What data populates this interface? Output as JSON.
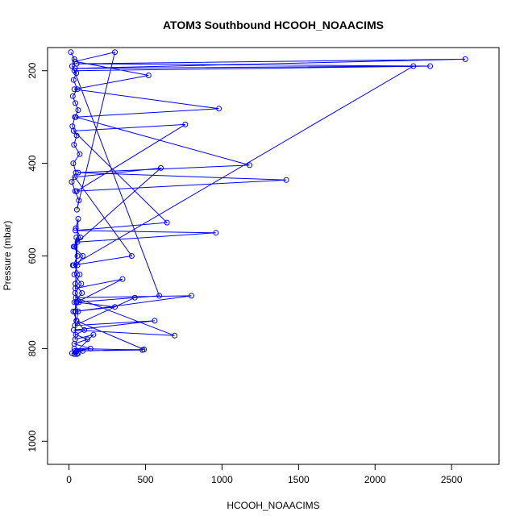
{
  "chart_data": {
    "type": "line",
    "title": "ATOM3 Southbound HCOOH_NOAACIMS",
    "xlabel": "HCOOH_NOAACIMS",
    "ylabel": "Pressure (mbar)",
    "xlim": [
      -140,
      2810
    ],
    "ylim": [
      1050,
      150
    ],
    "y_reversed": true,
    "grid": false,
    "legend": "none",
    "x_ticks": [
      0,
      500,
      1000,
      1500,
      2000,
      2500
    ],
    "x_tick_labels": [
      "0",
      "500",
      "1000",
      "1500",
      "2000",
      "2500"
    ],
    "y_ticks": [
      200,
      400,
      600,
      800,
      1000
    ],
    "y_tick_labels": [
      "200",
      "400",
      "600",
      "800",
      "1000"
    ],
    "series": [
      {
        "color": "#0000ff",
        "marker": "open-circle",
        "x": [
          12,
          35,
          20,
          48,
          30,
          55,
          25,
          42,
          60,
          38,
          22,
          50,
          33,
          70,
          28,
          45,
          18,
          40,
          65,
          52,
          300,
          40,
          520,
          35,
          980,
          45,
          1180,
          60,
          1420,
          50,
          760,
          30,
          640,
          42,
          960,
          55,
          600,
          38,
          410,
          25,
          2250,
          40,
          2590,
          50,
          2360,
          35,
          590,
          48,
          300,
          40,
          800,
          45,
          690,
          30,
          560,
          38,
          430,
          50,
          350,
          42,
          60,
          45,
          75,
          30,
          90,
          55,
          35,
          80,
          40,
          65,
          28,
          50,
          100,
          45,
          120,
          35,
          140,
          52,
          160,
          40,
          48,
          38,
          55,
          30,
          70,
          42,
          85,
          35,
          60,
          48,
          490,
          40,
          480,
          35,
          90,
          45,
          60,
          52,
          20,
          35
        ],
        "y": [
          160,
          175,
          190,
          205,
          220,
          240,
          255,
          270,
          285,
          300,
          320,
          340,
          360,
          380,
          400,
          420,
          440,
          460,
          480,
          500,
          160,
          180,
          210,
          240,
          282,
          300,
          404,
          420,
          436,
          460,
          316,
          330,
          528,
          545,
          550,
          570,
          410,
          430,
          600,
          620,
          190,
          195,
          175,
          185,
          190,
          200,
          686,
          700,
          710,
          720,
          686,
          690,
          772,
          760,
          740,
          750,
          690,
          700,
          650,
          670,
          520,
          540,
          560,
          580,
          600,
          620,
          640,
          660,
          680,
          700,
          720,
          740,
          760,
          770,
          780,
          790,
          800,
          805,
          770,
          780,
          560,
          580,
          600,
          620,
          640,
          660,
          680,
          700,
          720,
          740,
          802,
          805,
          803,
          800,
          805,
          808,
          810,
          812,
          810,
          812
        ]
      }
    ]
  }
}
